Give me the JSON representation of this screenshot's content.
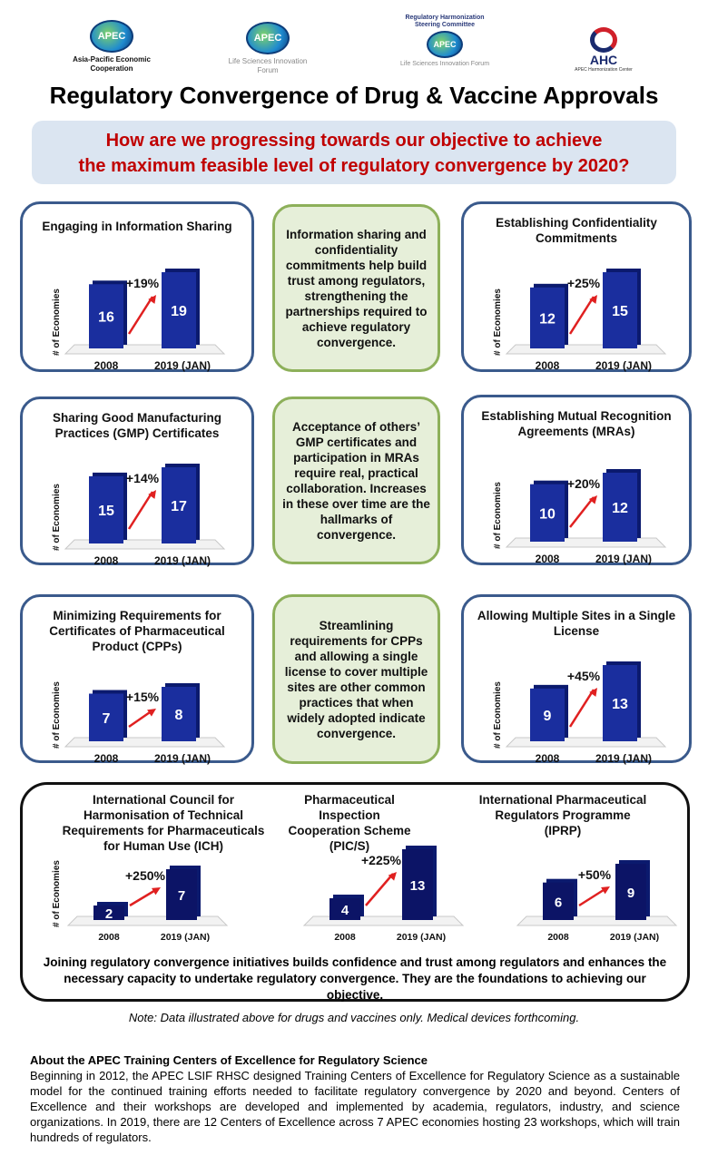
{
  "logos": [
    {
      "name": "APEC",
      "caption": "Asia-Pacific Economic Cooperation"
    },
    {
      "name": "APEC",
      "caption": "Life Sciences Innovation Forum"
    },
    {
      "name": "APEC",
      "header": "Regulatory Harmonization Steering Committee",
      "caption": "Life Sciences Innovation Forum"
    },
    {
      "name": "AHC",
      "caption": "APEC Harmonization Center"
    }
  ],
  "title": "Regulatory Convergence of Drug & Vaccine Approvals",
  "banner": {
    "line1": "How are we progressing towards our objective to achieve",
    "line2": "the maximum feasible level of regulatory convergence by 2020?"
  },
  "notes": [
    "Information sharing and confidentiality commitments help build trust among regulators, strengthening the partnerships required to achieve regulatory convergence.",
    "Acceptance of others’ GMP certificates and participation in MRAs require real, practical collaboration. Increases in these over time are the hallmarks of convergence.",
    "Streamlining requirements for CPPs and allowing a single license to cover multiple sites are other common practices that when widely adopted indicate convergence."
  ],
  "colors": {
    "bar": "#1a2e9e",
    "bar_dark": "#0b1a6e",
    "bottom_bar": "#0c1466",
    "arrow": "#e02020",
    "banner_text": "#c00000",
    "panel_border": "#3a5a8c",
    "note_border": "#8db05a"
  },
  "chart_data": [
    {
      "type": "bar",
      "title": "Engaging in Information Sharing",
      "ylabel": "# of Economies",
      "categories": [
        "2008",
        "2019 (JAN)"
      ],
      "values": [
        16,
        19
      ],
      "annotation": "+19%"
    },
    {
      "type": "bar",
      "title": "Establishing Confidentiality Commitments",
      "ylabel": "# of Economies",
      "categories": [
        "2008",
        "2019 (JAN)"
      ],
      "values": [
        12,
        15
      ],
      "annotation": "+25%"
    },
    {
      "type": "bar",
      "title": "Sharing Good Manufacturing Practices (GMP) Certificates",
      "ylabel": "# of Economies",
      "categories": [
        "2008",
        "2019 (JAN)"
      ],
      "values": [
        15,
        17
      ],
      "annotation": "+14%"
    },
    {
      "type": "bar",
      "title": "Establishing Mutual Recognition Agreements (MRAs)",
      "ylabel": "# of Economies",
      "categories": [
        "2008",
        "2019 (JAN)"
      ],
      "values": [
        10,
        12
      ],
      "annotation": "+20%"
    },
    {
      "type": "bar",
      "title": "Minimizing Requirements for Certificates of Pharmaceutical Product (CPPs)",
      "ylabel": "# of Economies",
      "categories": [
        "2008",
        "2019 (JAN)"
      ],
      "values": [
        7,
        8
      ],
      "annotation": "+15%"
    },
    {
      "type": "bar",
      "title": "Allowing Multiple Sites in a Single License",
      "ylabel": "# of Economies",
      "categories": [
        "2008",
        "2019 (JAN)"
      ],
      "values": [
        9,
        13
      ],
      "annotation": "+45%"
    },
    {
      "type": "bar",
      "title": "International Council for Harmonisation of Technical Requirements for Pharmaceuticals for Human Use (ICH)",
      "ylabel": "# of Economies",
      "categories": [
        "2008",
        "2019 (JAN)"
      ],
      "values": [
        2,
        7
      ],
      "annotation": "+250%"
    },
    {
      "type": "bar",
      "title": "Pharmaceutical Inspection Cooperation Scheme (PIC/S)",
      "ylabel": "",
      "categories": [
        "2008",
        "2019 (JAN)"
      ],
      "values": [
        4,
        13
      ],
      "annotation": "+225%"
    },
    {
      "type": "bar",
      "title": "International Pharmaceutical Regulators Programme (IPRP)",
      "ylabel": "",
      "categories": [
        "2008",
        "2019 (JAN)"
      ],
      "values": [
        6,
        9
      ],
      "annotation": "+50%"
    }
  ],
  "bottom_text": "Joining regulatory convergence initiatives builds confidence and trust among regulators and enhances the necessary capacity to undertake regulatory convergence. They are the foundations to achieving our objective.",
  "footnote": "Note: Data illustrated above for drugs and vaccines only. Medical devices forthcoming.",
  "about": {
    "heading": "About the APEC Training Centers of Excellence for Regulatory Science",
    "body": "Beginning in 2012, the APEC LSIF RHSC designed Training Centers of Excellence for Regulatory Science as a sustainable model for the continued training efforts needed to facilitate regulatory convergence by 2020 and beyond. Centers of Excellence and their workshops are developed and implemented by academia, regulators, industry, and science organizations. In 2019, there are 12 Centers of Excellence across 7 APEC economies hosting 23 workshops, which will train hundreds of regulators."
  }
}
